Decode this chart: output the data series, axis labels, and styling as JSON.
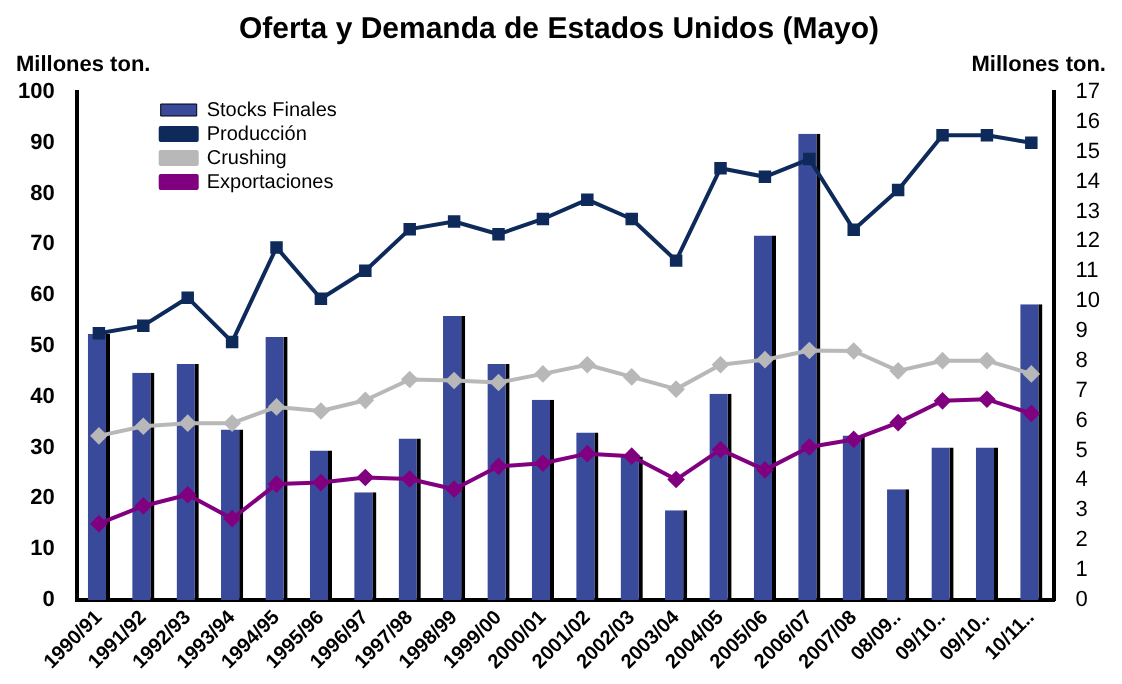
{
  "chart_data": {
    "type": "bar",
    "title": "Oferta y Demanda de Estados Unidos (Mayo)",
    "ylabel": "Millones ton.",
    "y2label": "Millones ton.",
    "categories": [
      "1990/91",
      "1991/92",
      "1992/93",
      "1993/94",
      "1994/95",
      "1995/96",
      "1996/97",
      "1997/98",
      "1998/99",
      "1999/00",
      "2000/01",
      "2001/02",
      "2002/03",
      "2003/04",
      "2004/05",
      "2005/06",
      "2006/07",
      "2007/08",
      "08/09..",
      "09/10..",
      "09/10..",
      "10/11.."
    ],
    "series": [
      {
        "name": "Stocks Finales",
        "axis": "y2",
        "color": "#3a4a9a",
        "values": [
          8.9,
          7.6,
          7.9,
          5.7,
          8.8,
          5.0,
          3.6,
          5.4,
          9.5,
          7.9,
          6.7,
          5.6,
          4.8,
          3.0,
          6.9,
          12.2,
          15.6,
          5.5,
          3.7,
          5.1,
          5.1,
          9.9
        ]
      },
      {
        "name": "Producción",
        "type": "line",
        "marker": "square",
        "color": "#0d2a5a",
        "values": [
          52.5,
          54,
          59.5,
          50.8,
          69.4,
          59.3,
          64.8,
          73,
          74.5,
          72,
          75,
          78.8,
          75,
          66.8,
          85,
          83.3,
          86.8,
          72.9,
          80.7,
          91.5,
          91.5,
          90
        ]
      },
      {
        "name": "Crushing",
        "type": "line",
        "marker": "diamond",
        "color": "#b8b8b8",
        "values": [
          32.3,
          34.2,
          34.8,
          34.8,
          38,
          37.2,
          39.3,
          43.4,
          43.2,
          42.8,
          44.5,
          46.3,
          43.9,
          41.5,
          46.3,
          47.3,
          49.1,
          49,
          45.1,
          47.1,
          47.1,
          44.5
        ]
      },
      {
        "name": "Exportaciones",
        "type": "line",
        "marker": "diamond",
        "color": "#800080",
        "values": [
          15,
          18.5,
          20.7,
          16,
          22.8,
          23.1,
          24.1,
          23.8,
          21.8,
          26.3,
          26.9,
          28.8,
          28.3,
          23.7,
          29.6,
          25.6,
          30.1,
          31.6,
          34.9,
          39.2,
          39.5,
          36.7
        ]
      }
    ],
    "ylim": [
      0,
      100
    ],
    "yticks": [
      0,
      10,
      20,
      30,
      40,
      50,
      60,
      70,
      80,
      90,
      100
    ],
    "y2lim": [
      0,
      17
    ],
    "y2ticks": [
      0,
      1,
      2,
      3,
      4,
      5,
      6,
      7,
      8,
      9,
      10,
      11,
      12,
      13,
      14,
      15,
      16,
      17
    ],
    "grid": false,
    "legend": "top left"
  }
}
